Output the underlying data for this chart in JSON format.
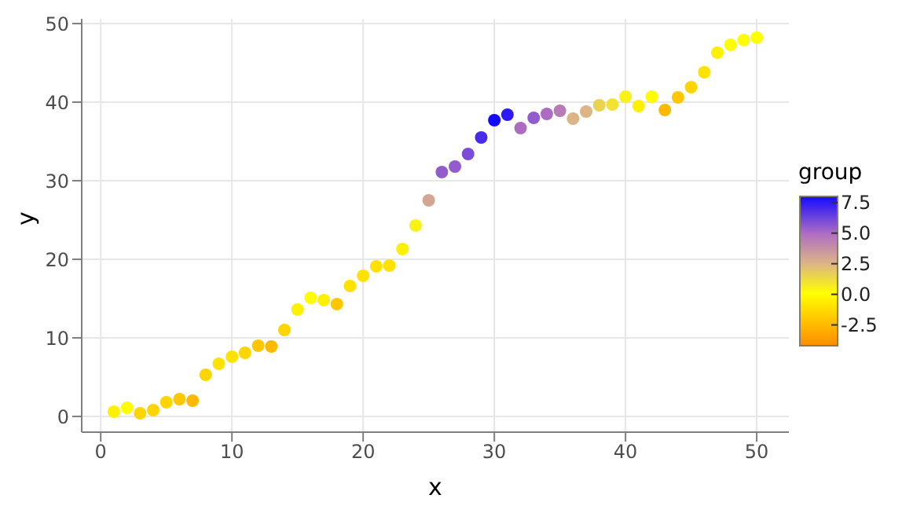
{
  "chart_data": {
    "type": "scatter",
    "xlabel": "x",
    "ylabel": "y",
    "clabel": "group",
    "x": [
      1,
      2,
      3,
      4,
      5,
      6,
      7,
      8,
      9,
      10,
      11,
      12,
      13,
      14,
      15,
      16,
      17,
      18,
      19,
      20,
      21,
      22,
      23,
      24,
      25,
      26,
      27,
      28,
      29,
      30,
      31,
      32,
      33,
      34,
      35,
      36,
      37,
      38,
      39,
      40,
      41,
      42,
      43,
      44,
      45,
      46,
      47,
      48,
      49,
      50
    ],
    "values": [
      0.6,
      1.1,
      0.4,
      0.8,
      1.8,
      2.2,
      2.0,
      5.3,
      6.7,
      7.6,
      8.1,
      9.0,
      8.9,
      11.0,
      13.6,
      15.1,
      14.8,
      14.3,
      16.6,
      17.9,
      19.1,
      19.2,
      21.3,
      24.3,
      27.5,
      31.1,
      31.8,
      33.4,
      35.5,
      37.7,
      38.4,
      36.7,
      38.0,
      38.5,
      38.9,
      37.9,
      38.8,
      39.6,
      39.7,
      40.7,
      39.5,
      40.7,
      39.0,
      40.6,
      41.9,
      43.8,
      46.3,
      47.3,
      47.9,
      48.2
    ],
    "cvalues": [
      -0.5,
      0,
      -1.5,
      -1.5,
      -1.5,
      -2,
      -2.5,
      -1.5,
      -1,
      -1,
      -1.5,
      -2,
      -2.5,
      -1.5,
      -0.5,
      0,
      -0.5,
      -2,
      -1,
      -1,
      -1,
      -1,
      -0.5,
      0.5,
      3,
      5.5,
      5.5,
      6,
      7,
      8,
      7.5,
      5,
      5.5,
      5,
      4.5,
      2.5,
      2.5,
      1.5,
      1,
      0.5,
      -0.5,
      0,
      -2.5,
      -2,
      -1.5,
      -1,
      -0.5,
      0,
      0,
      0
    ],
    "clim": [
      -4.2,
      8
    ],
    "cticks": [
      7.5,
      {
        "value": 5,
        "label": "5.0"
      },
      2.5,
      {
        "value": 0,
        "label": "0.0"
      },
      -2.5
    ],
    "xlim": [
      -1.45,
      52.45
    ],
    "xticks": [
      0,
      10,
      20,
      30,
      40,
      50
    ],
    "ylim": [
      -2,
      50.6
    ],
    "yticks": [
      0,
      10,
      20,
      30,
      40,
      50
    ],
    "grid": true,
    "marker": "circle"
  }
}
